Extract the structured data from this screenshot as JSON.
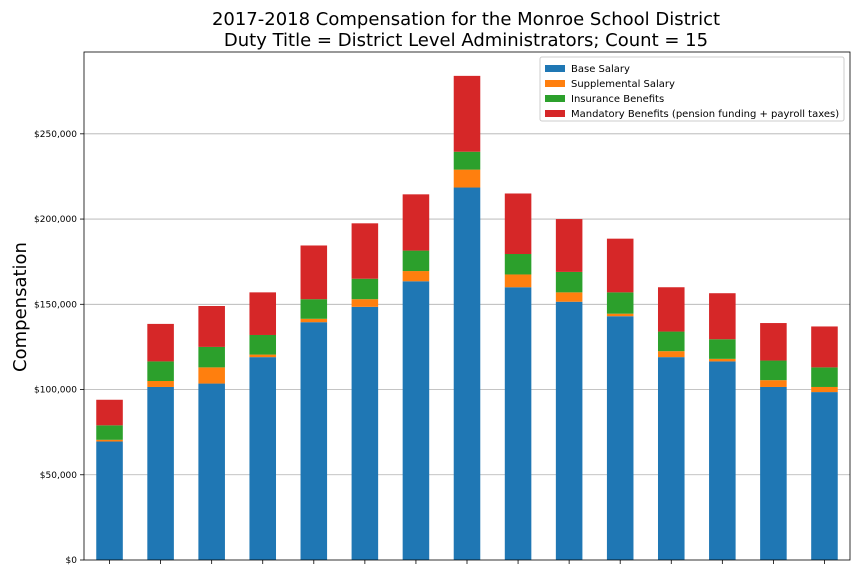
{
  "chart_data": {
    "type": "bar",
    "stacked": true,
    "title": [
      "2017-2018 Compensation for the Monroe School District",
      "Duty Title = District Level Administrators; Count = 15"
    ],
    "xlabel": "",
    "ylabel": "Compensation",
    "ylim": [
      0,
      298000
    ],
    "yticks": [
      0,
      50000,
      100000,
      150000,
      200000,
      250000
    ],
    "ytick_labels": [
      "$0",
      "$50,000",
      "$100,000",
      "$150,000",
      "$200,000",
      "$250,000"
    ],
    "grid": "horizontal",
    "legend_position": "top-right",
    "categories": [
      "",
      "",
      "",
      "",
      "",
      "",
      "",
      "",
      "",
      "",
      "",
      "",
      "",
      "",
      ""
    ],
    "series": [
      {
        "name": "Base Salary",
        "color": "#1f77b4",
        "values": [
          69500,
          101500,
          103500,
          119000,
          139500,
          148500,
          163500,
          218500,
          160000,
          151500,
          143000,
          119000,
          116500,
          101500,
          98500
        ]
      },
      {
        "name": "Supplemental Salary",
        "color": "#ff7f0e",
        "values": [
          1000,
          3500,
          9500,
          1500,
          2000,
          4500,
          6000,
          10500,
          7500,
          5500,
          1500,
          3500,
          1500,
          4000,
          3000
        ]
      },
      {
        "name": "Insurance Benefits",
        "color": "#2ca02c",
        "values": [
          8500,
          11500,
          12000,
          11500,
          11500,
          12000,
          12000,
          10500,
          12000,
          12000,
          12500,
          11500,
          11500,
          11500,
          11500
        ]
      },
      {
        "name": "Mandatory Benefits (pension funding + payroll taxes)",
        "color": "#d62728",
        "values": [
          15000,
          22000,
          24000,
          25000,
          31500,
          32500,
          33000,
          44500,
          35500,
          31000,
          31500,
          26000,
          27000,
          22000,
          24000
        ]
      }
    ]
  }
}
